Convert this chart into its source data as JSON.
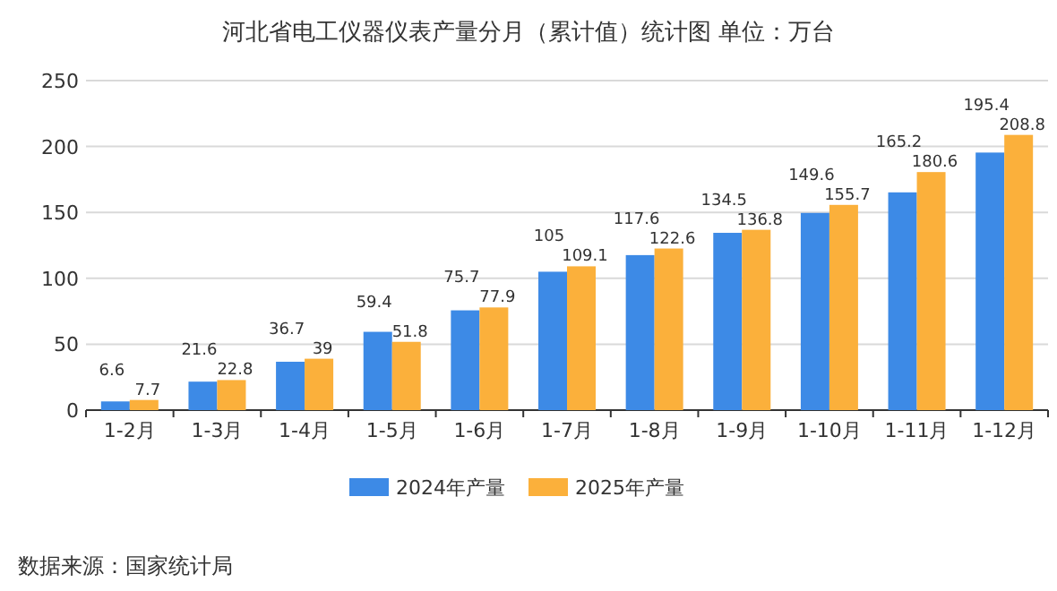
{
  "chart_data": {
    "type": "bar",
    "title": "河北省电工仪器仪表产量分月（累计值）统计图 单位：万台",
    "categories": [
      "1-2月",
      "1-3月",
      "1-4月",
      "1-5月",
      "1-6月",
      "1-7月",
      "1-8月",
      "1-9月",
      "1-10月",
      "1-11月",
      "1-12月"
    ],
    "series": [
      {
        "name": "2024年产量",
        "color": "#3d8ae6",
        "values": [
          6.6,
          21.6,
          36.7,
          59.4,
          75.7,
          105,
          117.6,
          134.5,
          149.6,
          165.2,
          195.4
        ]
      },
      {
        "name": "2025年产量",
        "color": "#fbb03b",
        "values": [
          7.7,
          22.8,
          39,
          51.8,
          77.9,
          109.1,
          122.6,
          136.8,
          155.7,
          180.6,
          208.8
        ]
      }
    ],
    "ylim": [
      0,
      250
    ],
    "yticks": [
      0,
      50,
      100,
      150,
      200,
      250
    ],
    "grid": "y",
    "legend": "bottom",
    "data_labels": true,
    "annotations": [
      "数据来源：国家统计局"
    ]
  }
}
